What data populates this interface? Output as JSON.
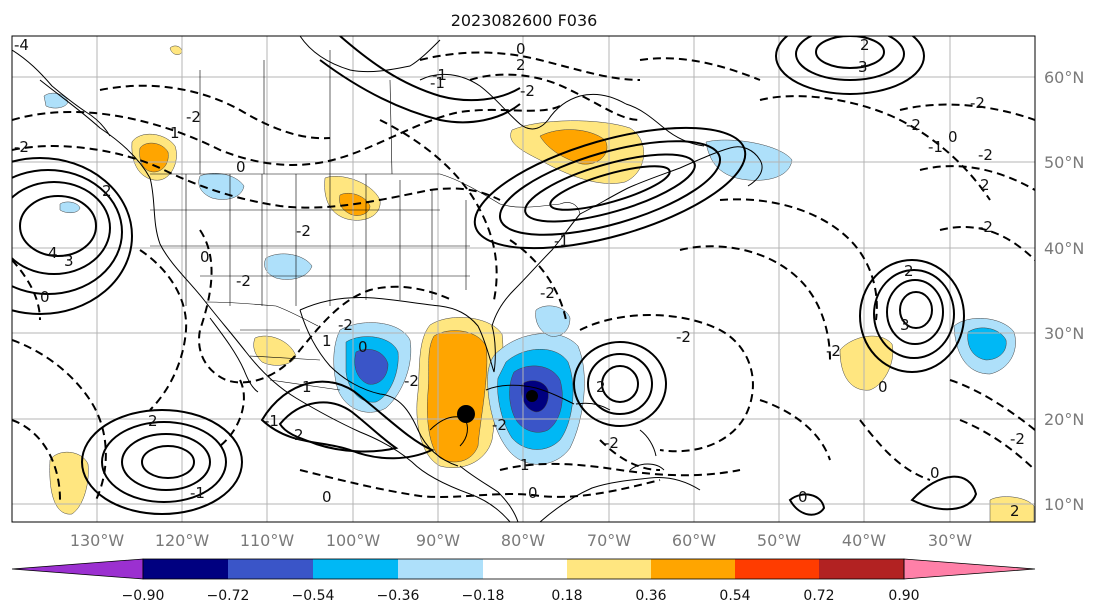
{
  "title": "2023082600 F036",
  "map": {
    "lon_labels": [
      "130°W",
      "120°W",
      "110°W",
      "100°W",
      "90°W",
      "80°W",
      "70°W",
      "60°W",
      "50°W",
      "40°W",
      "30°W"
    ],
    "lat_labels": [
      "60°N",
      "50°N",
      "40°N",
      "30°N",
      "20°N",
      "10°N"
    ]
  },
  "colorbar": {
    "ticks": [
      "−0.90",
      "−0.72",
      "−0.54",
      "−0.36",
      "−0.18",
      "0.18",
      "0.36",
      "0.54",
      "0.72",
      "0.90"
    ],
    "colors": [
      "#9b30d0",
      "#000080",
      "#3a55c8",
      "#00b8f5",
      "#aee0fa",
      "#ffffff",
      "#ffe680",
      "#ffa500",
      "#ff3c00",
      "#b22222",
      "#ff80a8"
    ]
  },
  "contour_labels": [
    "-4",
    "-2",
    "1",
    "-2",
    "0",
    "2",
    "4",
    "3",
    "0",
    "-1",
    "-2",
    "2",
    "0",
    "-2",
    "2",
    "3",
    "-2",
    "-2",
    "2",
    "-1",
    "0",
    "-2",
    "-2",
    "-1",
    "2",
    "3",
    "-2",
    "0",
    "1",
    "1",
    "2",
    "2",
    "-2",
    "1",
    "-2",
    "-1",
    "0",
    "2",
    "-1",
    "0",
    "0",
    "0",
    "2",
    "-2",
    "-2",
    "-1",
    "-2",
    "-2",
    "-2",
    "0",
    "0",
    "-2"
  ]
}
